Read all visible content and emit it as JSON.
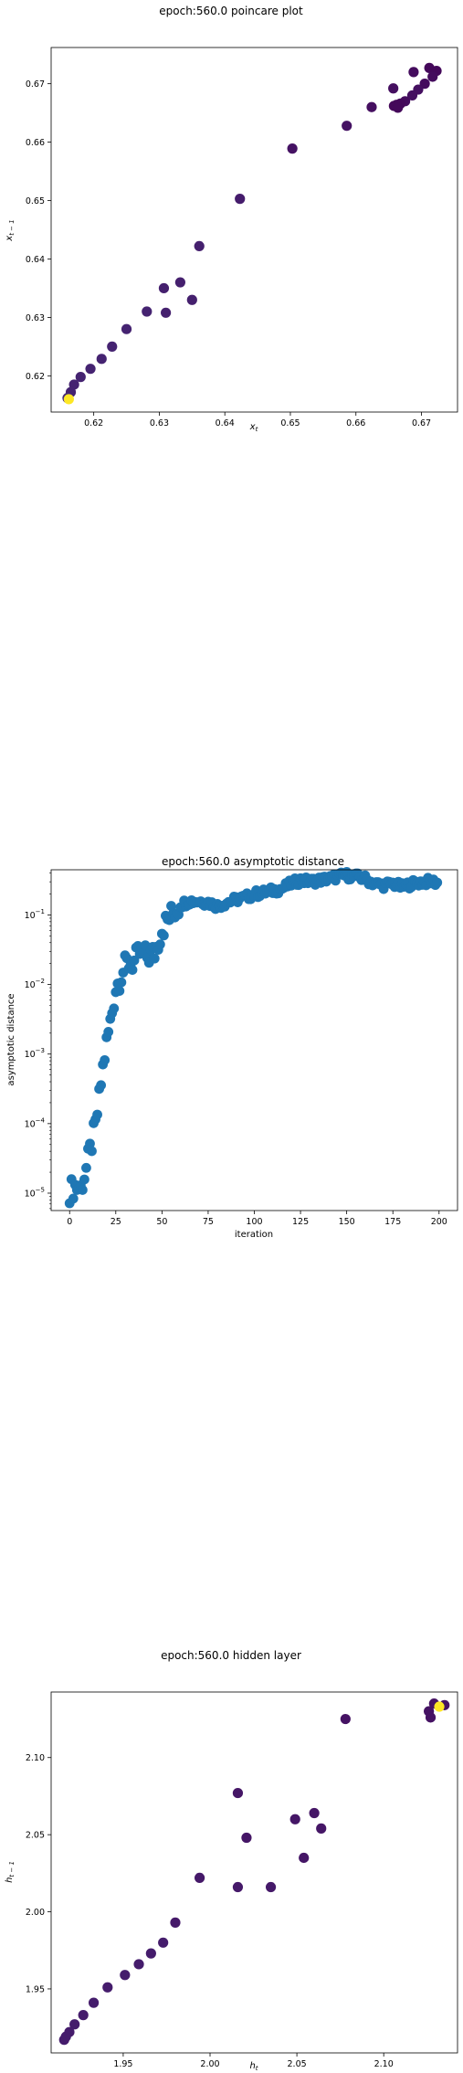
{
  "chart_data": [
    {
      "type": "scatter",
      "title": "epoch:560.0 poincare plot",
      "xlabel": "x_t",
      "ylabel": "x_{t-1}",
      "xlim": [
        0.6135,
        0.6755
      ],
      "ylim": [
        0.6138,
        0.6762
      ],
      "xticks": [
        0.62,
        0.63,
        0.64,
        0.65,
        0.66,
        0.67
      ],
      "yticks": [
        0.62,
        0.63,
        0.64,
        0.65,
        0.66,
        0.67
      ],
      "tick_format": 2,
      "colormap": "viridis",
      "colors": [
        "#440154",
        "#46327e",
        "#365c8d",
        "#277f8e",
        "#1fa187",
        "#4ac16d",
        "#a0da39",
        "#fde725"
      ],
      "points": [
        {
          "x": 0.6712,
          "y": 0.6727,
          "c": 0.02
        },
        {
          "x": 0.6723,
          "y": 0.6722,
          "c": 0.02
        },
        {
          "x": 0.6688,
          "y": 0.672,
          "c": 0.03
        },
        {
          "x": 0.6717,
          "y": 0.6712,
          "c": 0.03
        },
        {
          "x": 0.6705,
          "y": 0.67,
          "c": 0.03
        },
        {
          "x": 0.6695,
          "y": 0.669,
          "c": 0.04
        },
        {
          "x": 0.6686,
          "y": 0.668,
          "c": 0.04
        },
        {
          "x": 0.6657,
          "y": 0.6692,
          "c": 0.04
        },
        {
          "x": 0.6675,
          "y": 0.667,
          "c": 0.03
        },
        {
          "x": 0.6668,
          "y": 0.6666,
          "c": 0.02
        },
        {
          "x": 0.6662,
          "y": 0.6664,
          "c": 0.02
        },
        {
          "x": 0.6658,
          "y": 0.6662,
          "c": 0.02
        },
        {
          "x": 0.6664,
          "y": 0.6659,
          "c": 0.02
        },
        {
          "x": 0.6624,
          "y": 0.666,
          "c": 0.04
        },
        {
          "x": 0.6586,
          "y": 0.6628,
          "c": 0.05
        },
        {
          "x": 0.6503,
          "y": 0.6589,
          "c": 0.05
        },
        {
          "x": 0.6423,
          "y": 0.6503,
          "c": 0.08
        },
        {
          "x": 0.6361,
          "y": 0.6422,
          "c": 0.09
        },
        {
          "x": 0.6332,
          "y": 0.636,
          "c": 0.09
        },
        {
          "x": 0.635,
          "y": 0.633,
          "c": 0.09
        },
        {
          "x": 0.6307,
          "y": 0.635,
          "c": 0.09
        },
        {
          "x": 0.6281,
          "y": 0.631,
          "c": 0.1
        },
        {
          "x": 0.631,
          "y": 0.6308,
          "c": 0.09
        },
        {
          "x": 0.625,
          "y": 0.628,
          "c": 0.1
        },
        {
          "x": 0.6228,
          "y": 0.625,
          "c": 0.1
        },
        {
          "x": 0.6212,
          "y": 0.6229,
          "c": 0.1
        },
        {
          "x": 0.6195,
          "y": 0.6212,
          "c": 0.1
        },
        {
          "x": 0.618,
          "y": 0.6198,
          "c": 0.1
        },
        {
          "x": 0.617,
          "y": 0.6185,
          "c": 0.1
        },
        {
          "x": 0.6165,
          "y": 0.6172,
          "c": 0.1
        },
        {
          "x": 0.616,
          "y": 0.6162,
          "c": 0.12
        },
        {
          "x": 0.6162,
          "y": 0.616,
          "c": 1.0
        }
      ]
    },
    {
      "type": "scatter",
      "title": "epoch:560.0 asymptotic distance",
      "xlabel": "iteration",
      "ylabel": "asymptotic distance",
      "xlim": [
        -10,
        210
      ],
      "yscale": "log",
      "ylim_exp": [
        -5.25,
        -0.35
      ],
      "xticks": [
        0,
        25,
        50,
        75,
        100,
        125,
        150,
        175,
        200
      ],
      "yticks_exp": [
        -5,
        -4,
        -3,
        -2,
        -1
      ],
      "color": "#1f77b4",
      "anchors": [
        {
          "x": 0,
          "y": -4.97
        },
        {
          "x": 3,
          "y": -4.9
        },
        {
          "x": 6,
          "y": -4.93
        },
        {
          "x": 9,
          "y": -4.65
        },
        {
          "x": 11,
          "y": -4.4
        },
        {
          "x": 14,
          "y": -4.05
        },
        {
          "x": 16,
          "y": -3.65
        },
        {
          "x": 18,
          "y": -3.2
        },
        {
          "x": 20,
          "y": -2.85
        },
        {
          "x": 22,
          "y": -2.55
        },
        {
          "x": 25,
          "y": -2.05
        },
        {
          "x": 28,
          "y": -1.85
        },
        {
          "x": 31,
          "y": -1.7
        },
        {
          "x": 35,
          "y": -1.68
        },
        {
          "x": 38,
          "y": -1.55
        },
        {
          "x": 42,
          "y": -1.6
        },
        {
          "x": 46,
          "y": -1.55
        },
        {
          "x": 50,
          "y": -1.2
        },
        {
          "x": 55,
          "y": -1.0
        },
        {
          "x": 60,
          "y": -0.85
        },
        {
          "x": 65,
          "y": -0.8
        },
        {
          "x": 70,
          "y": -0.8
        },
        {
          "x": 75,
          "y": -0.82
        },
        {
          "x": 80,
          "y": -0.87
        },
        {
          "x": 85,
          "y": -0.82
        },
        {
          "x": 90,
          "y": -0.78
        },
        {
          "x": 95,
          "y": -0.75
        },
        {
          "x": 100,
          "y": -0.7
        },
        {
          "x": 105,
          "y": -0.68
        },
        {
          "x": 110,
          "y": -0.65
        },
        {
          "x": 115,
          "y": -0.62
        },
        {
          "x": 120,
          "y": -0.55
        },
        {
          "x": 125,
          "y": -0.5
        },
        {
          "x": 130,
          "y": -0.52
        },
        {
          "x": 135,
          "y": -0.5
        },
        {
          "x": 140,
          "y": -0.48
        },
        {
          "x": 145,
          "y": -0.45
        },
        {
          "x": 150,
          "y": -0.43
        },
        {
          "x": 155,
          "y": -0.45
        },
        {
          "x": 160,
          "y": -0.48
        },
        {
          "x": 165,
          "y": -0.55
        },
        {
          "x": 170,
          "y": -0.57
        },
        {
          "x": 175,
          "y": -0.55
        },
        {
          "x": 180,
          "y": -0.6
        },
        {
          "x": 185,
          "y": -0.55
        },
        {
          "x": 190,
          "y": -0.53
        },
        {
          "x": 195,
          "y": -0.52
        },
        {
          "x": 199,
          "y": -0.53
        }
      ]
    },
    {
      "type": "scatter",
      "title": "epoch:560.0 hidden layer",
      "xlabel": "h_t",
      "ylabel": "h_{t-1}",
      "xlim": [
        1.9085,
        2.1425
      ],
      "ylim": [
        1.9085,
        2.1425
      ],
      "xticks": [
        1.95,
        2.0,
        2.05,
        2.1
      ],
      "yticks": [
        1.95,
        2.0,
        2.05,
        2.1
      ],
      "tick_format": 2,
      "colormap": "viridis",
      "colors": [
        "#440154",
        "#46327e",
        "#365c8d",
        "#277f8e",
        "#1fa187",
        "#4ac16d",
        "#a0da39",
        "#fde725"
      ],
      "points": [
        {
          "x": 2.135,
          "y": 2.134,
          "c": 0.05
        },
        {
          "x": 2.129,
          "y": 2.135,
          "c": 0.05
        },
        {
          "x": 2.126,
          "y": 2.13,
          "c": 0.05
        },
        {
          "x": 2.127,
          "y": 2.126,
          "c": 0.05
        },
        {
          "x": 2.078,
          "y": 2.125,
          "c": 0.05
        },
        {
          "x": 2.016,
          "y": 2.077,
          "c": 0.06
        },
        {
          "x": 2.06,
          "y": 2.064,
          "c": 0.06
        },
        {
          "x": 2.049,
          "y": 2.06,
          "c": 0.06
        },
        {
          "x": 2.064,
          "y": 2.054,
          "c": 0.06
        },
        {
          "x": 2.021,
          "y": 2.048,
          "c": 0.06
        },
        {
          "x": 2.054,
          "y": 2.035,
          "c": 0.06
        },
        {
          "x": 1.994,
          "y": 2.022,
          "c": 0.07
        },
        {
          "x": 2.016,
          "y": 2.016,
          "c": 0.07
        },
        {
          "x": 2.035,
          "y": 2.016,
          "c": 0.07
        },
        {
          "x": 1.98,
          "y": 1.993,
          "c": 0.07
        },
        {
          "x": 1.973,
          "y": 1.98,
          "c": 0.08
        },
        {
          "x": 1.966,
          "y": 1.973,
          "c": 0.08
        },
        {
          "x": 1.959,
          "y": 1.966,
          "c": 0.08
        },
        {
          "x": 1.951,
          "y": 1.959,
          "c": 0.08
        },
        {
          "x": 1.941,
          "y": 1.951,
          "c": 0.08
        },
        {
          "x": 1.933,
          "y": 1.941,
          "c": 0.08
        },
        {
          "x": 1.927,
          "y": 1.933,
          "c": 0.08
        },
        {
          "x": 1.922,
          "y": 1.927,
          "c": 0.08
        },
        {
          "x": 1.919,
          "y": 1.922,
          "c": 0.08
        },
        {
          "x": 1.917,
          "y": 1.919,
          "c": 0.08
        },
        {
          "x": 1.916,
          "y": 1.917,
          "c": 0.08
        },
        {
          "x": 2.132,
          "y": 2.133,
          "c": 1.0
        }
      ]
    }
  ]
}
